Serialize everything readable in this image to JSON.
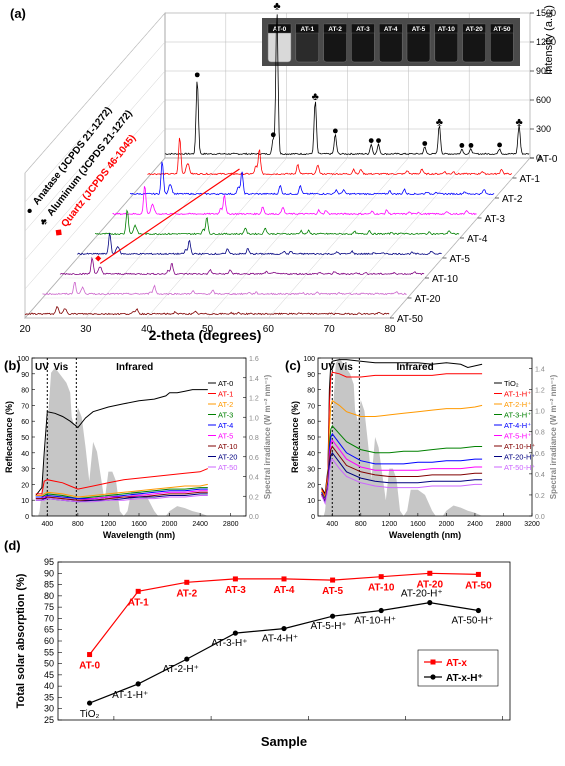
{
  "chart_data": [
    {
      "panel": "(a)",
      "type": "line",
      "xlabel": "2-theta (degrees)",
      "ylabel": "Intensity (a.u.)",
      "x_ticks": [
        "20",
        "30",
        "40",
        "50",
        "60",
        "70",
        "80"
      ],
      "xlim": [
        20,
        80
      ],
      "y_ticks": [
        "0",
        "300",
        "600",
        "900",
        "1200",
        "1500"
      ],
      "ylim": [
        0,
        1500
      ],
      "series": [
        {
          "name": "AT-0",
          "color": "#000000"
        },
        {
          "name": "AT-1",
          "color": "#ff0000"
        },
        {
          "name": "AT-2",
          "color": "#0000ff"
        },
        {
          "name": "AT-3",
          "color": "#ff00ff"
        },
        {
          "name": "AT-4",
          "color": "#008000"
        },
        {
          "name": "AT-5",
          "color": "#000080"
        },
        {
          "name": "AT-10",
          "color": "#800080"
        },
        {
          "name": "AT-20",
          "color": "#cc66cc"
        },
        {
          "name": "AT-50",
          "color": "#800000"
        }
      ],
      "peaks": [
        {
          "x": 25.3,
          "h": 780,
          "m": "anatase"
        },
        {
          "x": 37.8,
          "h": 160,
          "m": "anatase"
        },
        {
          "x": 38.4,
          "h": 1500,
          "m": "aluminum"
        },
        {
          "x": 48.0,
          "h": 200,
          "m": "anatase"
        },
        {
          "x": 44.7,
          "h": 560,
          "m": "aluminum"
        },
        {
          "x": 53.9,
          "h": 100,
          "m": "anatase"
        },
        {
          "x": 55.1,
          "h": 100,
          "m": "anatase"
        },
        {
          "x": 62.7,
          "h": 70,
          "m": "anatase"
        },
        {
          "x": 65.1,
          "h": 300,
          "m": "aluminum"
        },
        {
          "x": 68.8,
          "h": 50,
          "m": "anatase"
        },
        {
          "x": 70.3,
          "h": 50,
          "m": "anatase"
        },
        {
          "x": 75.0,
          "h": 55,
          "m": "anatase"
        },
        {
          "x": 78.2,
          "h": 300,
          "m": "aluminum"
        }
      ],
      "legend": [
        {
          "symbol": "●",
          "label": "Anatase (JCPDS 21-1272)",
          "color": "#000000"
        },
        {
          "symbol": "♣",
          "label": "Aluminum (JCPDS 21-1272)",
          "color": "#000000"
        },
        {
          "symbol": "◆",
          "label": "Quartz (JCPDS 46-1045)",
          "color": "#ff0000"
        }
      ],
      "inset_labels": [
        "AT-0",
        "AT-1",
        "AT-2",
        "AT-3",
        "AT-4",
        "AT-5",
        "AT-10",
        "AT-20",
        "AT-50"
      ]
    },
    {
      "panel": "(b)",
      "type": "line",
      "xlabel": "Wavelength (nm)",
      "ylabel": "Reflecatance (%)",
      "y2label": "Spectral irradiance (W m⁻² nm⁻¹)",
      "x_ticks": [
        "400",
        "800",
        "1200",
        "1600",
        "2000",
        "2400",
        "2800"
      ],
      "xlim": [
        200,
        3000
      ],
      "y_ticks": [
        "0",
        "10",
        "20",
        "30",
        "40",
        "50",
        "60",
        "70",
        "80",
        "90",
        "100"
      ],
      "ylim": [
        0,
        100
      ],
      "y2_ticks": [
        "0.0",
        "0.2",
        "0.4",
        "0.6",
        "0.8",
        "1.0",
        "1.2",
        "1.4",
        "1.6"
      ],
      "y2lim": [
        0,
        1.6
      ],
      "region_labels": [
        "UV",
        "Vis",
        "Infrared"
      ],
      "x_markers": [
        400,
        780
      ],
      "series": [
        {
          "name": "AT-0",
          "color": "#000000",
          "x": [
            250,
            330,
            360,
            400,
            500,
            600,
            700,
            800,
            900,
            1000,
            1200,
            1400,
            1600,
            1800,
            1950,
            2000,
            2100,
            2200,
            2300,
            2400,
            2500
          ],
          "y": [
            13,
            18,
            40,
            66,
            65,
            63,
            60,
            56,
            62,
            66,
            69,
            71,
            73,
            74,
            76,
            78,
            78,
            79,
            80,
            80,
            80
          ]
        },
        {
          "name": "AT-1",
          "color": "#ff0000",
          "x": [
            250,
            330,
            360,
            400,
            500,
            600,
            700,
            800,
            1000,
            1200,
            1400,
            1600,
            1800,
            2000,
            2200,
            2400,
            2500
          ],
          "y": [
            14,
            14,
            22,
            23,
            22,
            21,
            19,
            17,
            19,
            21,
            23,
            24,
            25,
            26,
            27,
            28,
            30
          ]
        },
        {
          "name": "AT-2",
          "color": "#ff9900",
          "x": [
            250,
            330,
            360,
            400,
            600,
            800,
            1000,
            1200,
            1400,
            1600,
            1800,
            2000,
            2200,
            2400,
            2500
          ],
          "y": [
            13,
            13,
            14,
            15,
            14,
            12,
            13,
            14,
            15,
            16,
            17,
            18,
            19,
            19,
            20
          ]
        },
        {
          "name": "AT-3",
          "color": "#008000",
          "x": [
            250,
            330,
            360,
            400,
            600,
            800,
            1000,
            1200,
            1400,
            1600,
            1800,
            2000,
            2200,
            2400,
            2500
          ],
          "y": [
            12,
            12,
            13,
            14,
            13,
            11,
            12,
            13,
            14,
            15,
            16,
            17,
            17,
            18,
            18
          ]
        },
        {
          "name": "AT-4",
          "color": "#0000ff",
          "x": [
            250,
            330,
            360,
            400,
            600,
            800,
            1000,
            1200,
            1400,
            1600,
            1800,
            2000,
            2200,
            2400,
            2500
          ],
          "y": [
            12,
            12,
            12,
            13,
            12,
            11,
            11,
            12,
            13,
            14,
            15,
            16,
            16,
            17,
            17
          ]
        },
        {
          "name": "AT-5",
          "color": "#ff00ff",
          "x": [
            250,
            330,
            360,
            400,
            600,
            800,
            1000,
            1200,
            1400,
            1600,
            1800,
            2000,
            2200,
            2400,
            2500
          ],
          "y": [
            11,
            11,
            12,
            12,
            11,
            10,
            11,
            12,
            12,
            13,
            14,
            15,
            15,
            16,
            16
          ]
        },
        {
          "name": "AT-10",
          "color": "#800000",
          "x": [
            250,
            330,
            360,
            400,
            600,
            800,
            1000,
            1200,
            1400,
            1600,
            1800,
            2000,
            2200,
            2400,
            2500
          ],
          "y": [
            11,
            11,
            11,
            12,
            11,
            10,
            10,
            11,
            12,
            12,
            13,
            14,
            14,
            15,
            15
          ]
        },
        {
          "name": "AT-20",
          "color": "#000080",
          "x": [
            250,
            330,
            360,
            400,
            600,
            800,
            1000,
            1200,
            1400,
            1600,
            1800,
            2000,
            2200,
            2400,
            2500
          ],
          "y": [
            10,
            10,
            11,
            11,
            10,
            9,
            10,
            10,
            11,
            12,
            12,
            13,
            13,
            14,
            14
          ]
        },
        {
          "name": "AT-50",
          "color": "#cc66ff",
          "x": [
            250,
            330,
            360,
            400,
            600,
            800,
            1000,
            1200,
            1400,
            1600,
            1800,
            2000,
            2200,
            2400,
            2500
          ],
          "y": [
            10,
            10,
            10,
            11,
            10,
            9,
            9,
            10,
            10,
            11,
            11,
            12,
            12,
            13,
            13
          ]
        }
      ]
    },
    {
      "panel": "(c)",
      "type": "line",
      "xlabel": "Wavelength (nm)",
      "ylabel": "Reflecatance (%)",
      "y2label": "Spectral irradiance (W m⁻² nm⁻¹)",
      "x_ticks": [
        "400",
        "800",
        "1200",
        "1600",
        "2000",
        "2400",
        "2800",
        "3200"
      ],
      "xlim": [
        200,
        3200
      ],
      "y_ticks": [
        "0",
        "10",
        "20",
        "30",
        "40",
        "50",
        "60",
        "70",
        "80",
        "90",
        "100"
      ],
      "ylim": [
        0,
        100
      ],
      "y2_ticks": [
        "0.0",
        "0.2",
        "0.4",
        "0.6",
        "0.8",
        "1.0",
        "1.2",
        "1.4"
      ],
      "y2lim": [
        0,
        1.5
      ],
      "region_labels": [
        "UV",
        "Vis",
        "Infrared"
      ],
      "x_markers": [
        400,
        780
      ],
      "series": [
        {
          "name": "TiO₂",
          "color": "#000000",
          "x": [
            250,
            300,
            340,
            360,
            380,
            400,
            500,
            600,
            800,
            1000,
            1200,
            1400,
            1600,
            1800,
            2000,
            2200,
            2300,
            2400,
            2500
          ],
          "y": [
            18,
            14,
            30,
            80,
            96,
            98,
            99,
            99,
            98,
            97,
            97,
            97,
            97,
            96,
            97,
            96,
            94,
            95,
            96
          ]
        },
        {
          "name": "AT-1-H⁺",
          "color": "#ff0000",
          "x": [
            250,
            300,
            340,
            360,
            380,
            400,
            500,
            600,
            800,
            1000,
            1200,
            1400,
            1600,
            1800,
            2000,
            2200,
            2400,
            2500
          ],
          "y": [
            17,
            13,
            28,
            70,
            88,
            91,
            90,
            88,
            88,
            89,
            89,
            89,
            89,
            89,
            90,
            90,
            90,
            90
          ]
        },
        {
          "name": "AT-2-H⁺",
          "color": "#ff9900",
          "x": [
            250,
            300,
            340,
            360,
            380,
            400,
            500,
            600,
            800,
            1000,
            1200,
            1400,
            1600,
            1800,
            2000,
            2200,
            2400,
            2500
          ],
          "y": [
            16,
            12,
            25,
            55,
            70,
            73,
            70,
            66,
            63,
            63,
            64,
            65,
            66,
            67,
            68,
            68,
            69,
            70
          ]
        },
        {
          "name": "AT-3-H⁺",
          "color": "#008000",
          "x": [
            250,
            300,
            340,
            360,
            380,
            400,
            500,
            600,
            800,
            1000,
            1200,
            1400,
            1600,
            1800,
            2000,
            2200,
            2400,
            2500
          ],
          "y": [
            15,
            11,
            22,
            45,
            55,
            57,
            52,
            47,
            42,
            40,
            40,
            41,
            41,
            42,
            43,
            43,
            44,
            44
          ]
        },
        {
          "name": "AT-4-H⁺",
          "color": "#0000ff",
          "x": [
            250,
            300,
            340,
            360,
            380,
            400,
            500,
            600,
            800,
            1000,
            1200,
            1400,
            1600,
            1800,
            2000,
            2200,
            2400,
            2500
          ],
          "y": [
            15,
            10,
            21,
            42,
            50,
            52,
            46,
            40,
            35,
            33,
            33,
            33,
            34,
            34,
            35,
            35,
            36,
            36
          ]
        },
        {
          "name": "AT-5-H⁺",
          "color": "#ff00ff",
          "x": [
            250,
            300,
            340,
            360,
            380,
            400,
            500,
            600,
            800,
            1000,
            1200,
            1400,
            1600,
            1800,
            2000,
            2200,
            2400,
            2500
          ],
          "y": [
            14,
            10,
            20,
            38,
            46,
            48,
            42,
            36,
            31,
            29,
            29,
            29,
            29,
            30,
            30,
            30,
            31,
            31
          ]
        },
        {
          "name": "AT-10-H⁺",
          "color": "#800000",
          "x": [
            250,
            300,
            340,
            360,
            380,
            400,
            500,
            600,
            800,
            1000,
            1200,
            1400,
            1600,
            1800,
            2000,
            2200,
            2400,
            2500
          ],
          "y": [
            14,
            9,
            19,
            35,
            42,
            44,
            38,
            32,
            28,
            26,
            25,
            25,
            25,
            26,
            26,
            26,
            27,
            27
          ]
        },
        {
          "name": "AT-20-H⁺",
          "color": "#000080",
          "x": [
            250,
            300,
            340,
            360,
            380,
            400,
            500,
            600,
            800,
            1000,
            1200,
            1400,
            1600,
            1800,
            2000,
            2200,
            2400,
            2500
          ],
          "y": [
            13,
            9,
            18,
            32,
            38,
            40,
            34,
            28,
            24,
            22,
            21,
            21,
            21,
            22,
            22,
            22,
            23,
            23
          ]
        },
        {
          "name": "AT-50-H⁺",
          "color": "#cc66ff",
          "x": [
            250,
            300,
            340,
            360,
            380,
            400,
            500,
            600,
            800,
            1000,
            1200,
            1400,
            1600,
            1800,
            2000,
            2200,
            2400,
            2500
          ],
          "y": [
            13,
            8,
            17,
            28,
            34,
            36,
            30,
            25,
            21,
            19,
            18,
            18,
            18,
            19,
            19,
            19,
            20,
            20
          ]
        }
      ]
    },
    {
      "panel": "(d)",
      "type": "line",
      "xlabel": "Sample",
      "ylabel": "Total solar absorption (%)",
      "y_ticks": [
        "25",
        "30",
        "35",
        "40",
        "45",
        "50",
        "55",
        "60",
        "65",
        "70",
        "75",
        "80",
        "85",
        "90",
        "95"
      ],
      "ylim": [
        25,
        95
      ],
      "positions": [
        1,
        2,
        3,
        4,
        5,
        6,
        7,
        8,
        9
      ],
      "series": [
        {
          "name": "AT-x",
          "color": "#ff0000",
          "labels": [
            "AT-0",
            "AT-1",
            "AT-2",
            "AT-3",
            "AT-4",
            "AT-5",
            "AT-10",
            "AT-20",
            "AT-50"
          ],
          "values": [
            54,
            82,
            86,
            87.5,
            87.5,
            87,
            88.5,
            90,
            89.5
          ]
        },
        {
          "name": "AT-x-H⁺",
          "color": "#000000",
          "labels": [
            "TiO₂",
            "AT-1-H⁺",
            "AT-2-H⁺",
            "AT-3-H⁺",
            "AT-4-H⁺",
            "AT-5-H⁺",
            "AT-10-H⁺",
            "AT-20-H⁺",
            "AT-50-H⁺"
          ],
          "values": [
            32.5,
            41,
            52,
            63.5,
            65.5,
            71,
            73.5,
            77,
            73.5
          ]
        }
      ]
    }
  ]
}
